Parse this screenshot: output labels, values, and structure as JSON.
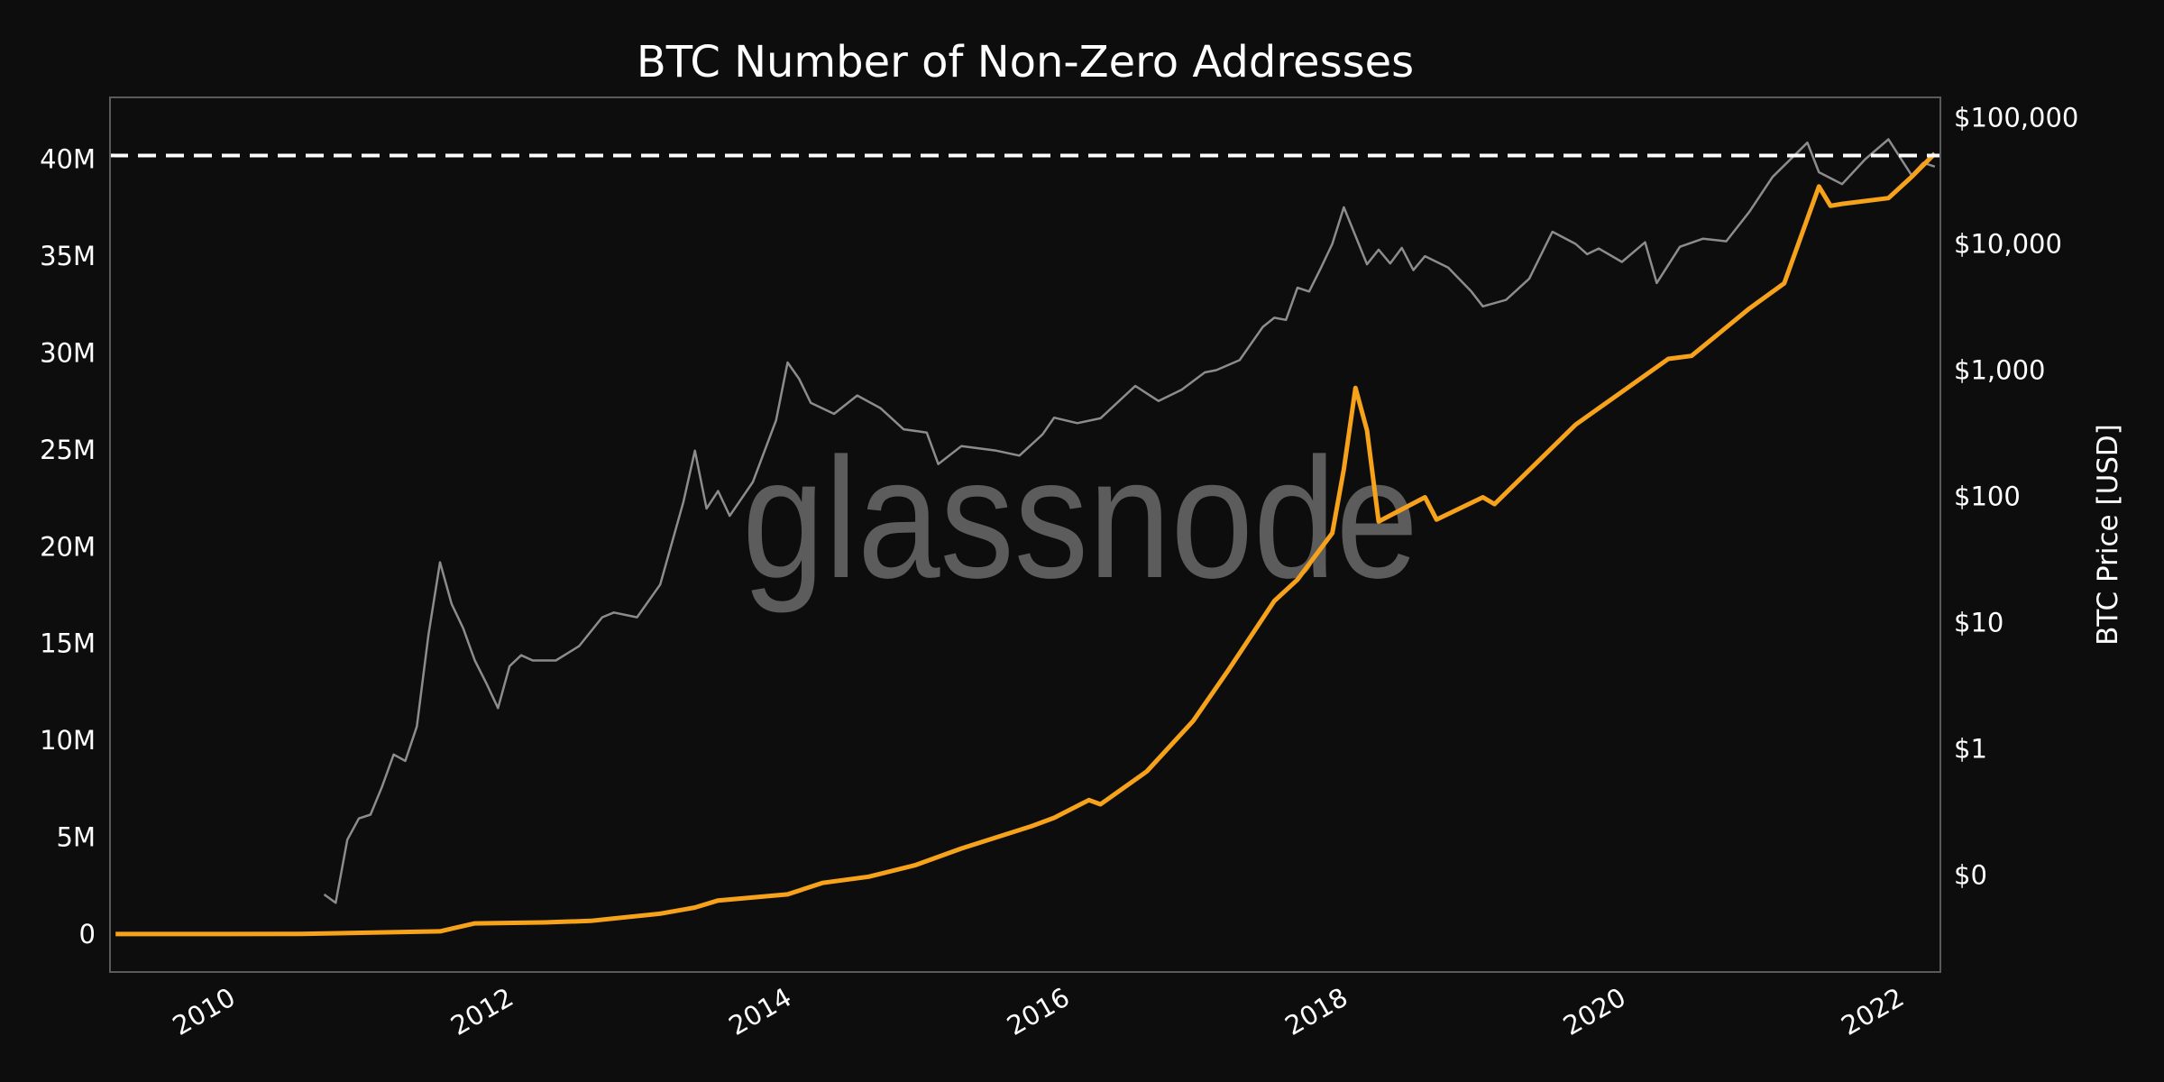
{
  "chart_data": {
    "type": "line",
    "title": "BTC Number of Non-Zero Addresses",
    "watermark": "glassnode",
    "xlabel": "",
    "ylabel_left": "",
    "ylabel_right": "BTC Price [USD]",
    "x_ticks": [
      "2010",
      "2012",
      "2014",
      "2016",
      "2018",
      "2020",
      "2022"
    ],
    "xlim": [
      "2009-02",
      "2022-03"
    ],
    "y_left": {
      "scale": "linear",
      "ylim": [
        -1960000,
        43200000
      ],
      "ticks": [
        0,
        5000000,
        10000000,
        15000000,
        20000000,
        25000000,
        30000000,
        35000000,
        40000000
      ],
      "tick_labels": [
        "0",
        "5M",
        "10M",
        "15M",
        "20M",
        "25M",
        "30M",
        "35M",
        "40M"
      ]
    },
    "y_right": {
      "scale": "log",
      "ylim": [
        0.017,
        145000
      ],
      "ticks": [
        0.1,
        1,
        10,
        100,
        1000,
        10000,
        100000
      ],
      "tick_labels": [
        "$0",
        "$1",
        "$10",
        "$100",
        "$1,000",
        "$10,000",
        "$100,000"
      ]
    },
    "grid": false,
    "legend": "none",
    "reference_line": {
      "axis": "left",
      "value": 40200000,
      "style": "dashed",
      "color": "#ffffff"
    },
    "series": [
      {
        "axis": "left",
        "color": "#f7a21b",
        "points": [
          [
            "2009-02",
            0
          ],
          [
            "2010-06",
            5000
          ],
          [
            "2011-06",
            140000
          ],
          [
            "2011-09",
            550000
          ],
          [
            "2012-03",
            600000
          ],
          [
            "2012-07",
            680000
          ],
          [
            "2013-01",
            1050000
          ],
          [
            "2013-04",
            1370000
          ],
          [
            "2013-06",
            1730000
          ],
          [
            "2013-12",
            2050000
          ],
          [
            "2014-03",
            2640000
          ],
          [
            "2014-07",
            2960000
          ],
          [
            "2014-11",
            3550000
          ],
          [
            "2015-03",
            4420000
          ],
          [
            "2015-09",
            5560000
          ],
          [
            "2015-11",
            6000000
          ],
          [
            "2016-02",
            6920000
          ],
          [
            "2016-03",
            6700000
          ],
          [
            "2016-07",
            8400000
          ],
          [
            "2016-11",
            11000000
          ],
          [
            "2017-02",
            13600000
          ],
          [
            "2017-06",
            17200000
          ],
          [
            "2017-08",
            18300000
          ],
          [
            "2017-11",
            20700000
          ],
          [
            "2017-12",
            24000000
          ],
          [
            "2018-01",
            28200000
          ],
          [
            "2018-02",
            26000000
          ],
          [
            "2018-03",
            21300000
          ],
          [
            "2018-07",
            22550000
          ],
          [
            "2018-08",
            21400000
          ],
          [
            "2018-12",
            22550000
          ],
          [
            "2019-01",
            22200000
          ],
          [
            "2019-08",
            26300000
          ],
          [
            "2020-04",
            29700000
          ],
          [
            "2020-06",
            29850000
          ],
          [
            "2020-11",
            32300000
          ],
          [
            "2021-02",
            33600000
          ],
          [
            "2021-05",
            38600000
          ],
          [
            "2021-06",
            37600000
          ],
          [
            "2021-07",
            37700000
          ],
          [
            "2021-11",
            38000000
          ],
          [
            "2022-01",
            39100000
          ],
          [
            "2022-03",
            40300000
          ]
        ]
      },
      {
        "axis": "right",
        "color": "#8c8c8c",
        "points": [
          [
            "2010-08",
            0.07
          ],
          [
            "2010-09",
            0.06
          ],
          [
            "2010-10",
            0.19
          ],
          [
            "2010-11",
            0.28
          ],
          [
            "2010-12",
            0.3
          ],
          [
            "2011-01",
            0.5
          ],
          [
            "2011-02",
            0.9
          ],
          [
            "2011-03",
            0.8
          ],
          [
            "2011-04",
            1.5
          ],
          [
            "2011-05",
            8
          ],
          [
            "2011-06",
            30
          ],
          [
            "2011-07",
            14
          ],
          [
            "2011-08",
            9
          ],
          [
            "2011-09",
            5
          ],
          [
            "2011-10",
            3.3
          ],
          [
            "2011-11",
            2.1
          ],
          [
            "2011-12",
            4.5
          ],
          [
            "2012-01",
            5.5
          ],
          [
            "2012-02",
            5
          ],
          [
            "2012-04",
            5
          ],
          [
            "2012-06",
            6.5
          ],
          [
            "2012-08",
            11
          ],
          [
            "2012-09",
            12
          ],
          [
            "2012-11",
            11
          ],
          [
            "2013-01",
            20
          ],
          [
            "2013-03",
            90
          ],
          [
            "2013-04",
            230
          ],
          [
            "2013-05",
            80
          ],
          [
            "2013-06",
            110
          ],
          [
            "2013-07",
            70
          ],
          [
            "2013-09",
            130
          ],
          [
            "2013-11",
            400
          ],
          [
            "2013-12",
            1150
          ],
          [
            "2014-01",
            850
          ],
          [
            "2014-02",
            550
          ],
          [
            "2014-04",
            450
          ],
          [
            "2014-06",
            630
          ],
          [
            "2014-08",
            500
          ],
          [
            "2014-10",
            340
          ],
          [
            "2014-12",
            320
          ],
          [
            "2015-01",
            180
          ],
          [
            "2015-03",
            250
          ],
          [
            "2015-06",
            230
          ],
          [
            "2015-08",
            210
          ],
          [
            "2015-10",
            310
          ],
          [
            "2015-11",
            420
          ],
          [
            "2016-01",
            380
          ],
          [
            "2016-03",
            415
          ],
          [
            "2016-06",
            750
          ],
          [
            "2016-08",
            570
          ],
          [
            "2016-10",
            700
          ],
          [
            "2016-12",
            960
          ],
          [
            "2017-01",
            1000
          ],
          [
            "2017-03",
            1200
          ],
          [
            "2017-05",
            2200
          ],
          [
            "2017-06",
            2600
          ],
          [
            "2017-07",
            2500
          ],
          [
            "2017-08",
            4500
          ],
          [
            "2017-09",
            4200
          ],
          [
            "2017-10",
            6400
          ],
          [
            "2017-11",
            10000
          ],
          [
            "2017-12",
            19500
          ],
          [
            "2018-02",
            6900
          ],
          [
            "2018-03",
            9000
          ],
          [
            "2018-04",
            7000
          ],
          [
            "2018-05",
            9300
          ],
          [
            "2018-06",
            6200
          ],
          [
            "2018-07",
            8000
          ],
          [
            "2018-09",
            6500
          ],
          [
            "2018-11",
            4200
          ],
          [
            "2018-12",
            3200
          ],
          [
            "2019-02",
            3600
          ],
          [
            "2019-04",
            5300
          ],
          [
            "2019-06",
            12500
          ],
          [
            "2019-08",
            10000
          ],
          [
            "2019-09",
            8300
          ],
          [
            "2019-10",
            9200
          ],
          [
            "2019-12",
            7200
          ],
          [
            "2020-02",
            10300
          ],
          [
            "2020-03",
            4900
          ],
          [
            "2020-05",
            9500
          ],
          [
            "2020-07",
            11000
          ],
          [
            "2020-09",
            10500
          ],
          [
            "2020-11",
            18000
          ],
          [
            "2021-01",
            34000
          ],
          [
            "2021-04",
            63500
          ],
          [
            "2021-05",
            37000
          ],
          [
            "2021-07",
            29800
          ],
          [
            "2021-09",
            47000
          ],
          [
            "2021-11",
            67500
          ],
          [
            "2022-01",
            35000
          ],
          [
            "2022-02",
            44000
          ],
          [
            "2022-03",
            41000
          ]
        ]
      }
    ]
  }
}
